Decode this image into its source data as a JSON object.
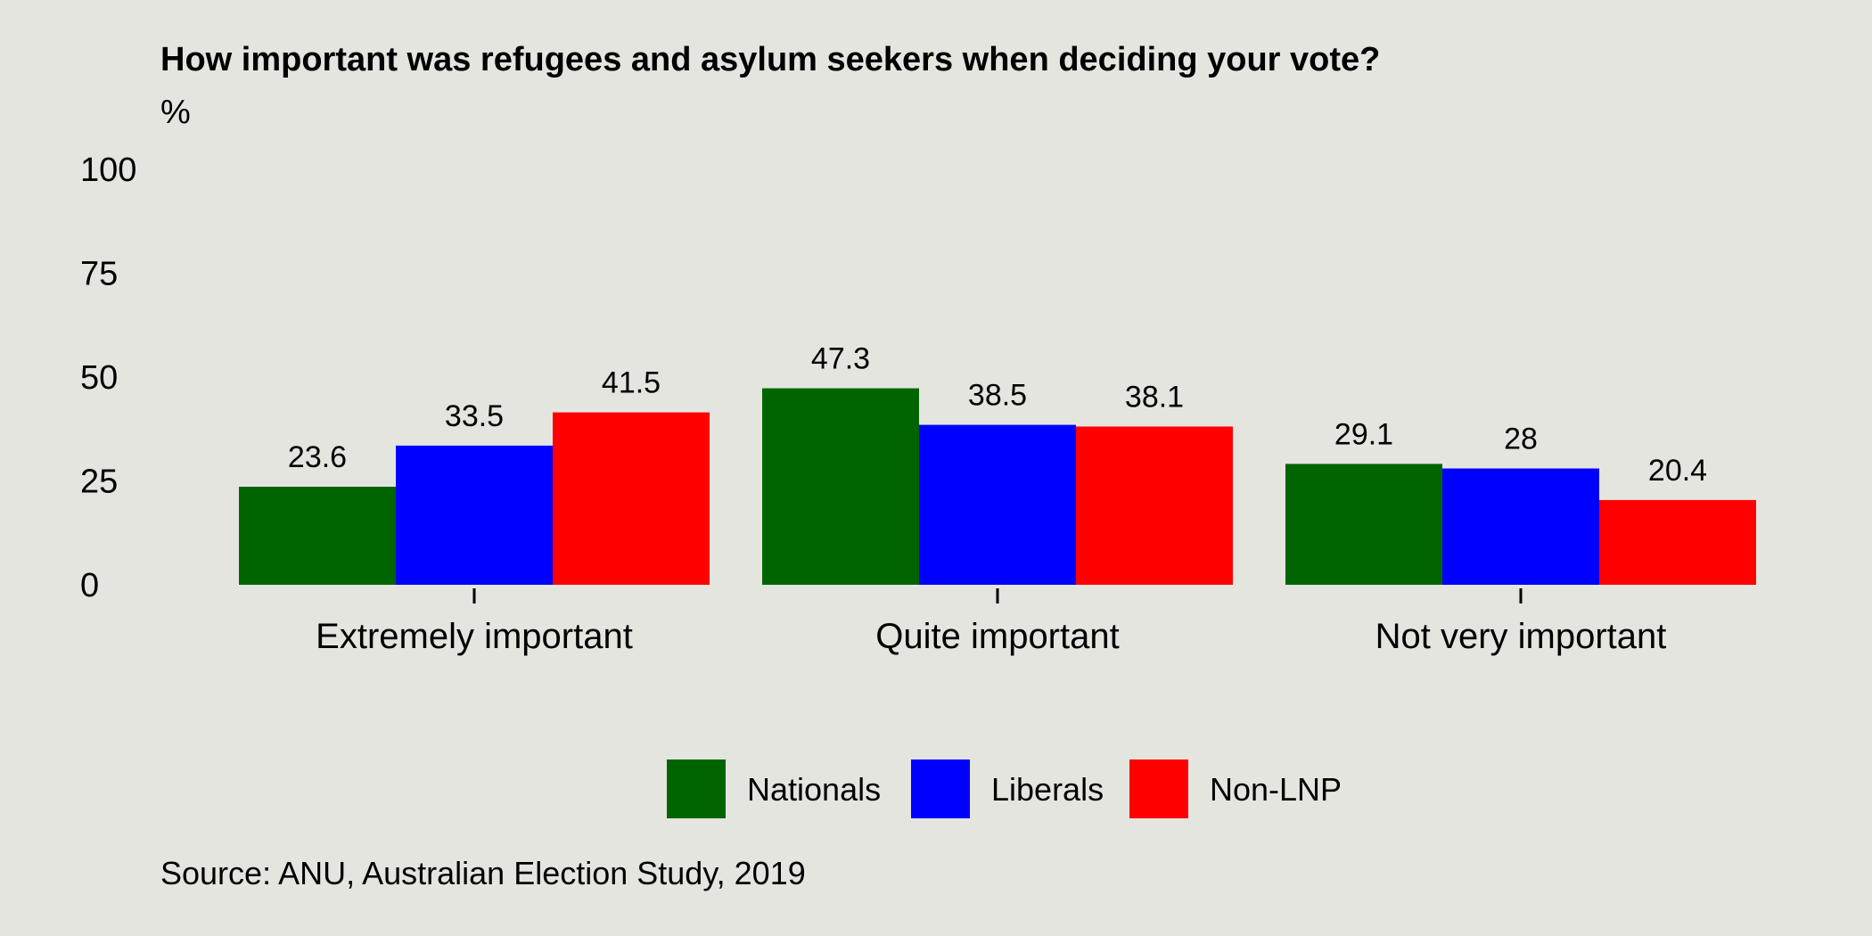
{
  "chart_data": {
    "type": "bar",
    "title": "How important was refugees and asylum seekers when deciding your vote?",
    "ylabel": "%",
    "xlabel": "",
    "ylim": [
      0,
      100
    ],
    "yticks": [
      "0",
      "25",
      "50",
      "75",
      "100"
    ],
    "categories": [
      "Extremely important",
      "Quite important",
      "Not very important"
    ],
    "series": [
      {
        "name": "Nationals",
        "color": "#006400",
        "values": [
          23.6,
          47.3,
          29.1
        ],
        "labels": [
          "23.6",
          "47.3",
          "29.1"
        ]
      },
      {
        "name": "Liberals",
        "color": "#0000ff",
        "values": [
          33.5,
          38.5,
          28
        ],
        "labels": [
          "33.5",
          "38.5",
          "28"
        ]
      },
      {
        "name": "Non-LNP",
        "color": "#ff0000",
        "values": [
          41.5,
          38.1,
          20.4
        ],
        "labels": [
          "41.5",
          "38.1",
          "20.4"
        ]
      }
    ],
    "grid": false,
    "legend_position": "bottom",
    "caption": "Source: ANU, Australian Election Study, 2019"
  },
  "colors": {
    "background": "#e5e5e0"
  }
}
